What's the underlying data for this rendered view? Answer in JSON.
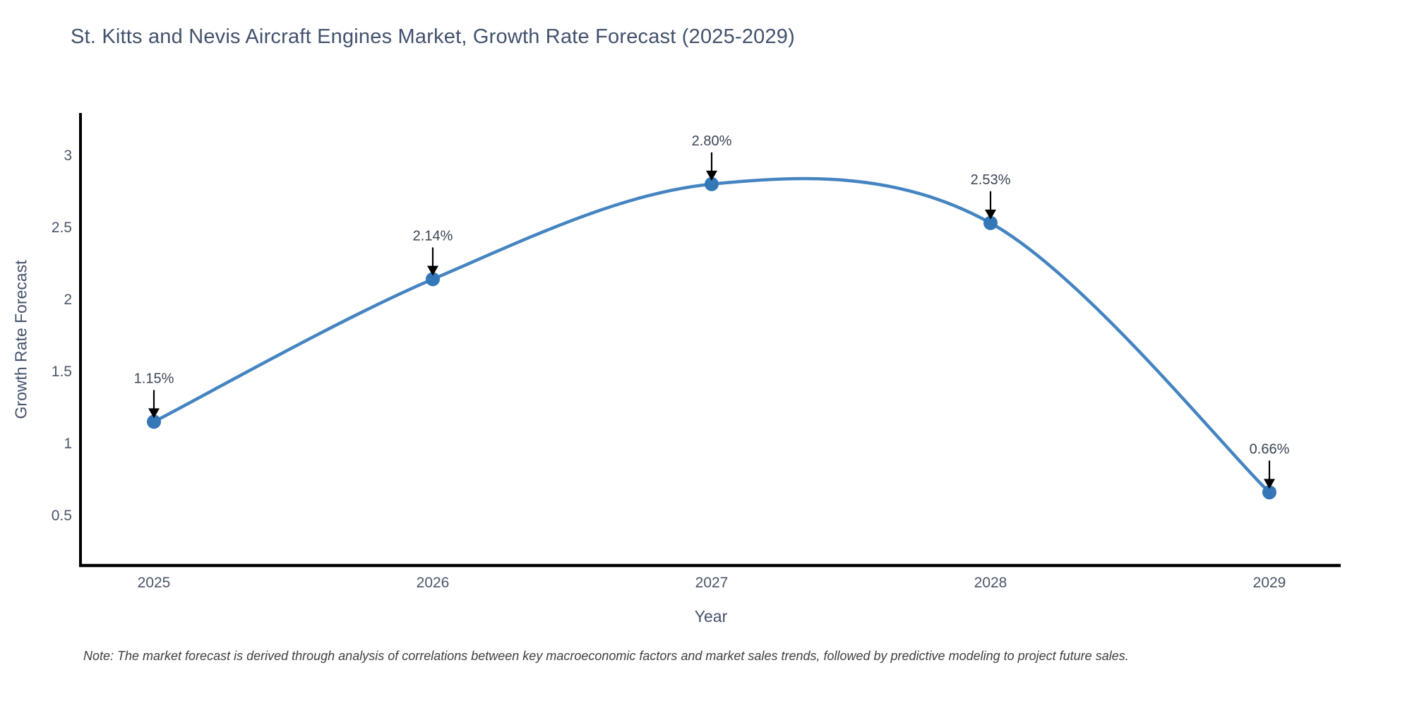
{
  "chart_data": {
    "type": "line",
    "title": "St. Kitts and Nevis Aircraft Engines Market, Growth Rate Forecast (2025-2029)",
    "xlabel": "Year",
    "ylabel": "Growth Rate Forecast",
    "x": [
      2025,
      2026,
      2027,
      2028,
      2029
    ],
    "values": [
      1.15,
      2.14,
      2.8,
      2.53,
      0.66
    ],
    "point_labels": [
      "1.15%",
      "2.14%",
      "2.80%",
      "2.53%",
      "0.66%"
    ],
    "yticks": [
      0.5,
      1,
      1.5,
      2,
      2.5,
      3
    ],
    "ylim": [
      0.14,
      3.3
    ],
    "line_shape": "spline",
    "grid": false,
    "legend_position": "none",
    "annotation_style": "label-above-with-down-arrow",
    "note": "Note: The market forecast is derived through analysis of correlations between key macroeconomic factors and market sales trends, followed by predictive modeling to project future sales.",
    "colors": {
      "line": "#4484c1",
      "marker": "#3478b8",
      "axis": "#000000",
      "title_text": "#42516d",
      "tick_text": "#4a5568",
      "annotation_text": "#3b4554",
      "arrow": "#000000",
      "background": "#ffffff"
    }
  }
}
